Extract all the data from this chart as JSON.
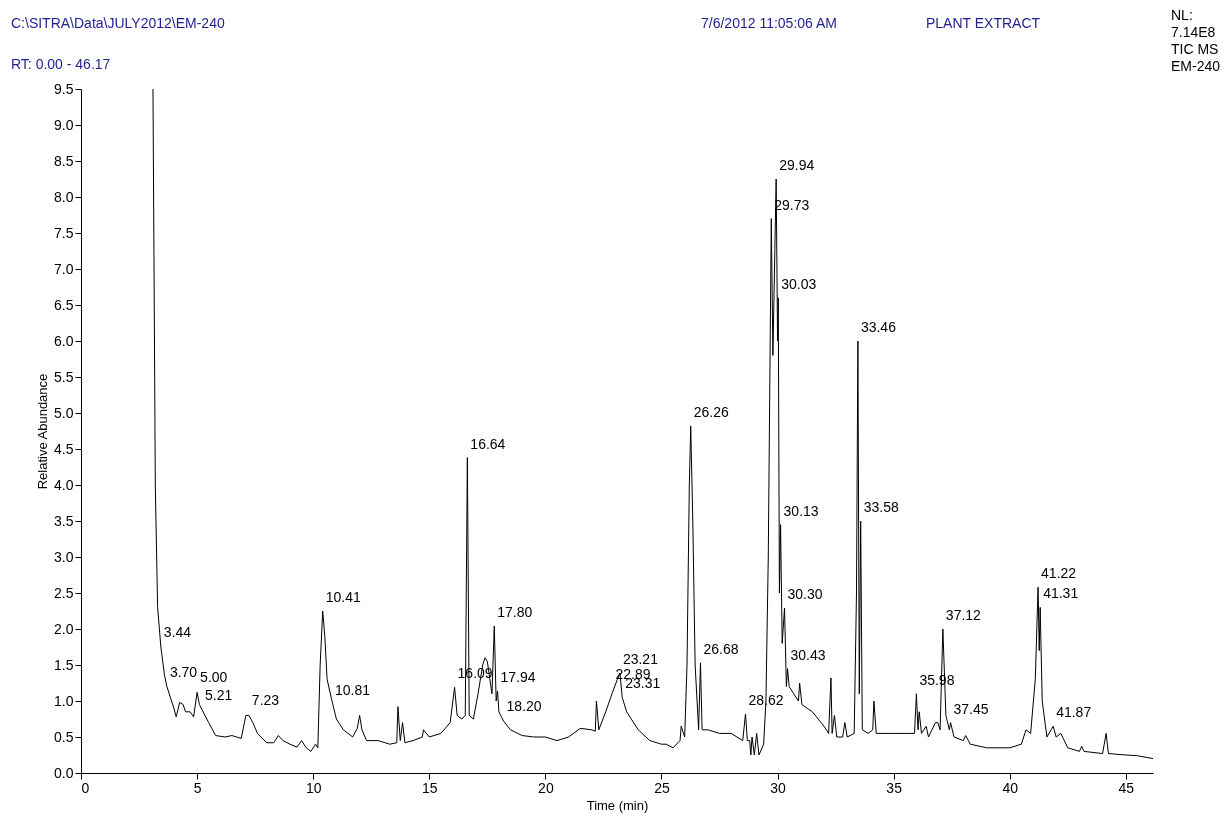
{
  "chart_data": {
    "type": "line",
    "title": "PLANT EXTRACT",
    "subtitle": "RT: 0.00 - 46.17",
    "xlabel": "Time (min)",
    "ylabel": "Relative Abundance",
    "annotations": [
      "C:\\SITRA\\Data\\JULY2012\\EM-240",
      "7/6/2012 11:05:06 AM",
      "NL:\n7.14E8\nTIC  MS\nEM-240",
      {
        "text": "3.44",
        "x": 3.44,
        "y": 1.76
      },
      {
        "text": "3.70",
        "x": 3.7,
        "y": 1.21
      },
      {
        "text": "5.00",
        "x": 5.0,
        "y": 1.14
      },
      {
        "text": "5.21",
        "x": 5.21,
        "y": 0.89
      },
      {
        "text": "7.23",
        "x": 7.23,
        "y": 0.82
      },
      {
        "text": "10.41",
        "x": 10.41,
        "y": 2.25
      },
      {
        "text": "10.81",
        "x": 10.81,
        "y": 0.96
      },
      {
        "text": "16.09",
        "x": 16.09,
        "y": 1.19
      },
      {
        "text": "16.64",
        "x": 16.64,
        "y": 4.38
      },
      {
        "text": "17.80",
        "x": 17.8,
        "y": 2.04
      },
      {
        "text": "17.94",
        "x": 17.94,
        "y": 1.14
      },
      {
        "text": "18.20",
        "x": 18.2,
        "y": 0.74
      },
      {
        "text": "22.89",
        "x": 22.89,
        "y": 1.18
      },
      {
        "text": "23.21",
        "x": 23.21,
        "y": 1.39
      },
      {
        "text": "23.31",
        "x": 23.31,
        "y": 1.05
      },
      {
        "text": "26.26",
        "x": 26.26,
        "y": 4.82
      },
      {
        "text": "26.68",
        "x": 26.68,
        "y": 1.53
      },
      {
        "text": "28.62",
        "x": 28.62,
        "y": 0.82
      },
      {
        "text": "29.73",
        "x": 29.73,
        "y": 7.7
      },
      {
        "text": "29.94",
        "x": 29.94,
        "y": 8.25
      },
      {
        "text": "30.03",
        "x": 30.03,
        "y": 6.6
      },
      {
        "text": "30.13",
        "x": 30.13,
        "y": 3.45
      },
      {
        "text": "30.30",
        "x": 30.3,
        "y": 2.29
      },
      {
        "text": "30.43",
        "x": 30.43,
        "y": 1.45
      },
      {
        "text": "33.46",
        "x": 33.46,
        "y": 6.0
      },
      {
        "text": "33.58",
        "x": 33.58,
        "y": 3.5
      },
      {
        "text": "35.98",
        "x": 35.98,
        "y": 1.1
      },
      {
        "text": "37.12",
        "x": 37.12,
        "y": 2.0
      },
      {
        "text": "37.45",
        "x": 37.45,
        "y": 0.7
      },
      {
        "text": "41.22",
        "x": 41.22,
        "y": 2.58
      },
      {
        "text": "41.31",
        "x": 41.31,
        "y": 2.3
      },
      {
        "text": "41.87",
        "x": 41.87,
        "y": 0.65
      }
    ],
    "x": [
      3.1,
      3.2,
      3.3,
      3.44,
      3.6,
      3.7,
      4.0,
      4.1,
      4.25,
      4.4,
      4.5,
      4.7,
      4.85,
      5.0,
      5.1,
      5.21,
      5.5,
      5.8,
      6.2,
      6.5,
      6.9,
      7.1,
      7.23,
      7.4,
      7.6,
      8.0,
      8.3,
      8.5,
      8.7,
      9.0,
      9.3,
      9.5,
      9.7,
      9.9,
      10.1,
      10.2,
      10.3,
      10.41,
      10.5,
      10.6,
      10.81,
      11.0,
      11.3,
      11.7,
      11.9,
      12.0,
      12.1,
      12.3,
      12.8,
      13.3,
      13.6,
      13.65,
      13.75,
      13.85,
      13.95,
      14.3,
      14.7,
      14.75,
      15.0,
      15.5,
      15.9,
      16.09,
      16.2,
      16.4,
      16.55,
      16.64,
      16.72,
      16.9,
      17.1,
      17.3,
      17.4,
      17.5,
      17.7,
      17.8,
      17.88,
      17.94,
      18.0,
      18.2,
      18.5,
      19.0,
      19.5,
      20.0,
      20.5,
      21.0,
      21.5,
      22.0,
      22.15,
      22.2,
      22.3,
      22.6,
      22.89,
      23.1,
      23.21,
      23.31,
      23.5,
      24.0,
      24.5,
      25.0,
      25.2,
      25.5,
      25.8,
      25.85,
      26.0,
      26.1,
      26.2,
      26.26,
      26.35,
      26.45,
      26.6,
      26.68,
      26.75,
      27.0,
      27.5,
      28.0,
      28.5,
      28.62,
      28.7,
      28.8,
      28.85,
      28.9,
      29.0,
      29.1,
      29.2,
      29.4,
      29.5,
      29.6,
      29.73,
      29.8,
      29.94,
      30.0,
      30.03,
      30.08,
      30.13,
      30.2,
      30.3,
      30.38,
      30.43,
      30.5,
      30.7,
      30.9,
      30.95,
      31.05,
      31.5,
      32.0,
      32.2,
      32.3,
      32.35,
      32.45,
      32.55,
      32.8,
      32.9,
      33.0,
      33.3,
      33.4,
      33.46,
      33.52,
      33.58,
      33.65,
      33.9,
      34.1,
      34.15,
      34.25,
      35.0,
      35.5,
      35.9,
      35.98,
      36.05,
      36.1,
      36.2,
      36.4,
      36.5,
      36.8,
      36.9,
      37.0,
      37.12,
      37.25,
      37.4,
      37.45,
      37.6,
      38.0,
      38.1,
      38.3,
      39.0,
      40.0,
      40.5,
      40.7,
      40.9,
      41.1,
      41.22,
      41.27,
      41.31,
      41.4,
      41.6,
      41.87,
      42.0,
      42.2,
      42.5,
      43.0,
      43.1,
      43.2,
      44.0,
      44.15,
      44.25,
      45.0,
      45.5,
      46.17
    ],
    "values": [
      9.5,
      4.0,
      2.3,
      1.75,
      1.35,
      1.2,
      0.9,
      0.78,
      0.98,
      0.95,
      0.85,
      0.85,
      0.78,
      1.12,
      0.95,
      0.88,
      0.7,
      0.52,
      0.5,
      0.52,
      0.48,
      0.8,
      0.8,
      0.7,
      0.55,
      0.42,
      0.42,
      0.52,
      0.45,
      0.4,
      0.36,
      0.45,
      0.35,
      0.3,
      0.4,
      0.35,
      1.5,
      2.25,
      1.9,
      1.3,
      1.0,
      0.75,
      0.6,
      0.5,
      0.62,
      0.8,
      0.6,
      0.45,
      0.45,
      0.4,
      0.42,
      0.92,
      0.45,
      0.7,
      0.42,
      0.45,
      0.5,
      0.6,
      0.5,
      0.55,
      0.7,
      1.19,
      0.8,
      0.75,
      0.8,
      4.38,
      0.8,
      0.75,
      1.1,
      1.5,
      1.6,
      1.55,
      1.1,
      2.04,
      1.0,
      1.14,
      0.85,
      0.72,
      0.6,
      0.52,
      0.5,
      0.5,
      0.45,
      0.5,
      0.62,
      0.6,
      0.58,
      1.0,
      0.6,
      0.85,
      1.12,
      1.3,
      1.39,
      1.05,
      0.85,
      0.6,
      0.45,
      0.4,
      0.4,
      0.35,
      0.45,
      0.65,
      0.5,
      1.5,
      4.0,
      4.82,
      3.5,
      1.5,
      0.6,
      1.53,
      0.6,
      0.6,
      0.55,
      0.55,
      0.45,
      0.82,
      0.45,
      0.45,
      0.25,
      0.5,
      0.25,
      0.55,
      0.25,
      0.4,
      1.0,
      3.0,
      7.7,
      5.8,
      8.25,
      6.0,
      6.6,
      2.5,
      3.45,
      1.8,
      2.29,
      1.2,
      1.45,
      1.2,
      1.1,
      1.0,
      1.25,
      0.95,
      0.85,
      0.65,
      0.55,
      1.32,
      0.55,
      0.8,
      0.5,
      0.5,
      0.7,
      0.5,
      0.55,
      2.5,
      6.0,
      1.1,
      3.5,
      0.6,
      0.55,
      0.6,
      1.0,
      0.55,
      0.55,
      0.55,
      0.55,
      1.1,
      0.6,
      0.85,
      0.55,
      0.65,
      0.5,
      0.7,
      0.7,
      0.6,
      2.0,
      0.8,
      0.6,
      0.7,
      0.5,
      0.45,
      0.52,
      0.4,
      0.35,
      0.35,
      0.4,
      0.6,
      0.55,
      1.3,
      2.58,
      1.7,
      2.3,
      1.0,
      0.5,
      0.65,
      0.5,
      0.55,
      0.35,
      0.3,
      0.37,
      0.3,
      0.27,
      0.55,
      0.27,
      0.25,
      0.24,
      0.2
    ],
    "color": "#000000",
    "line_style": "solid",
    "marker": "none",
    "grid": false,
    "xlim": [
      0,
      46.17
    ],
    "xticks": [
      0,
      5,
      10,
      15,
      20,
      25,
      30,
      35,
      40,
      45
    ],
    "ylim": [
      0,
      9.5
    ],
    "yticks": [
      {
        "value": 0,
        "label": "0.0"
      },
      0.5,
      {
        "value": 1,
        "label": "1.0"
      },
      1.5,
      {
        "value": 2,
        "label": "2.0"
      },
      2.5,
      {
        "value": 3,
        "label": "3.0"
      },
      3.5,
      {
        "value": 4,
        "label": "4.0"
      },
      4.5,
      {
        "value": 5,
        "label": "5.0"
      },
      5.5,
      {
        "value": 6,
        "label": "6.0"
      },
      6.5,
      {
        "value": 7,
        "label": "7.0"
      },
      7.5,
      {
        "value": 8,
        "label": "8.0"
      },
      8.5,
      {
        "value": 9,
        "label": "9.0"
      },
      9.5
    ]
  }
}
